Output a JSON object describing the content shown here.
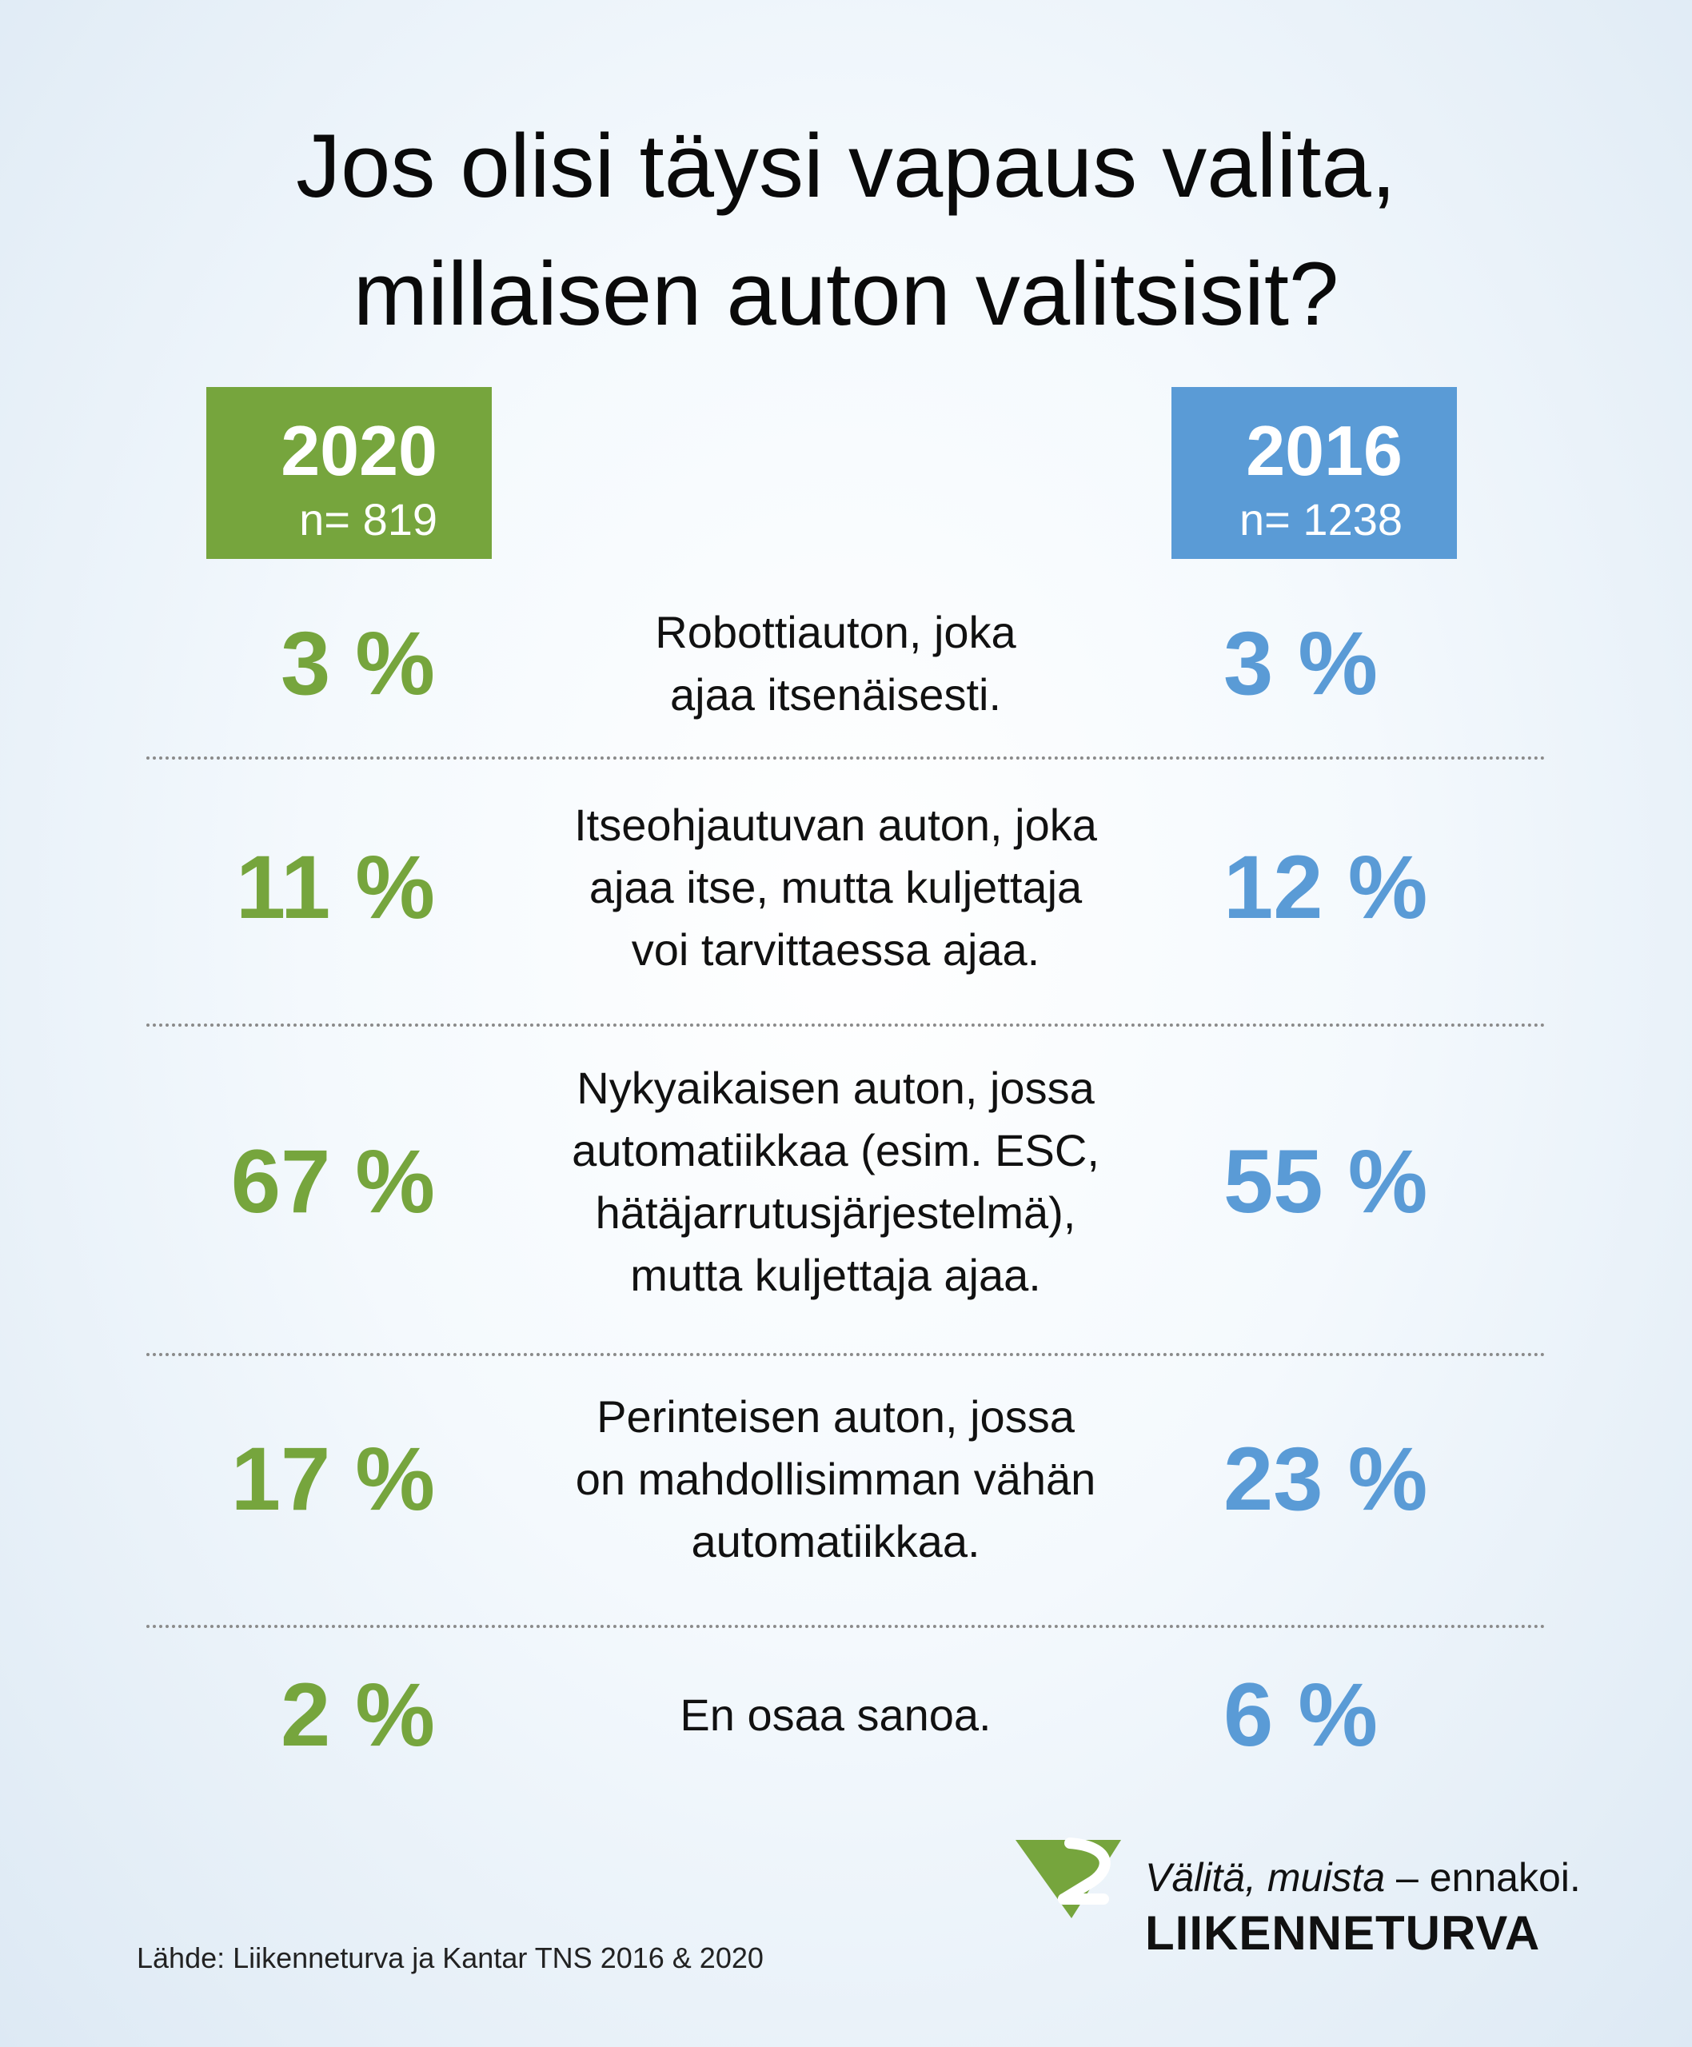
{
  "title": {
    "line1": "Jos olisi täysi vapaus valita,",
    "line2": "millaisen auton valitsisit?"
  },
  "chart_data": {
    "type": "table",
    "title": "Jos olisi täysi vapaus valita, millaisen auton valitsisit?",
    "series": [
      {
        "name": "2020",
        "n_label": "n= 819",
        "values": [
          3,
          11,
          67,
          17,
          2
        ],
        "labels": [
          "3 %",
          "11 %",
          "67 %",
          "17 %",
          "2 %"
        ]
      },
      {
        "name": "2016",
        "n_label": "n= 1238",
        "values": [
          3,
          12,
          55,
          23,
          6
        ],
        "labels": [
          "3 %",
          "12 %",
          "55 %",
          "23 %",
          "6 %"
        ]
      }
    ],
    "categories": [
      [
        "Robottiauton, joka",
        "ajaa itsenäisesti."
      ],
      [
        "Itseohjautuvan auton, joka",
        "ajaa itse, mutta kuljettaja",
        "voi tarvittaessa ajaa."
      ],
      [
        "Nykyaikaisen auton, jossa",
        "automatiikkaa (esim. ESC,",
        "hätäjarrutusjärjestelmä),",
        "mutta kuljettaja ajaa."
      ],
      [
        "Perinteisen auton, jossa",
        "on mahdollisimman vähän",
        "automatiikkaa."
      ],
      [
        "En osaa sanoa."
      ]
    ],
    "colors": {
      "2020": "#76a53d",
      "2016": "#5a9bd6"
    }
  },
  "footer": {
    "source": "Lähde: Liikenneturva ja Kantar TNS 2016 & 2020",
    "slogan_italic": "Välitä, muista",
    "slogan_rest": " – ennakoi.",
    "brand": "LIIKENNETURVA"
  },
  "logo_colors": {
    "green": "#76a53d"
  }
}
